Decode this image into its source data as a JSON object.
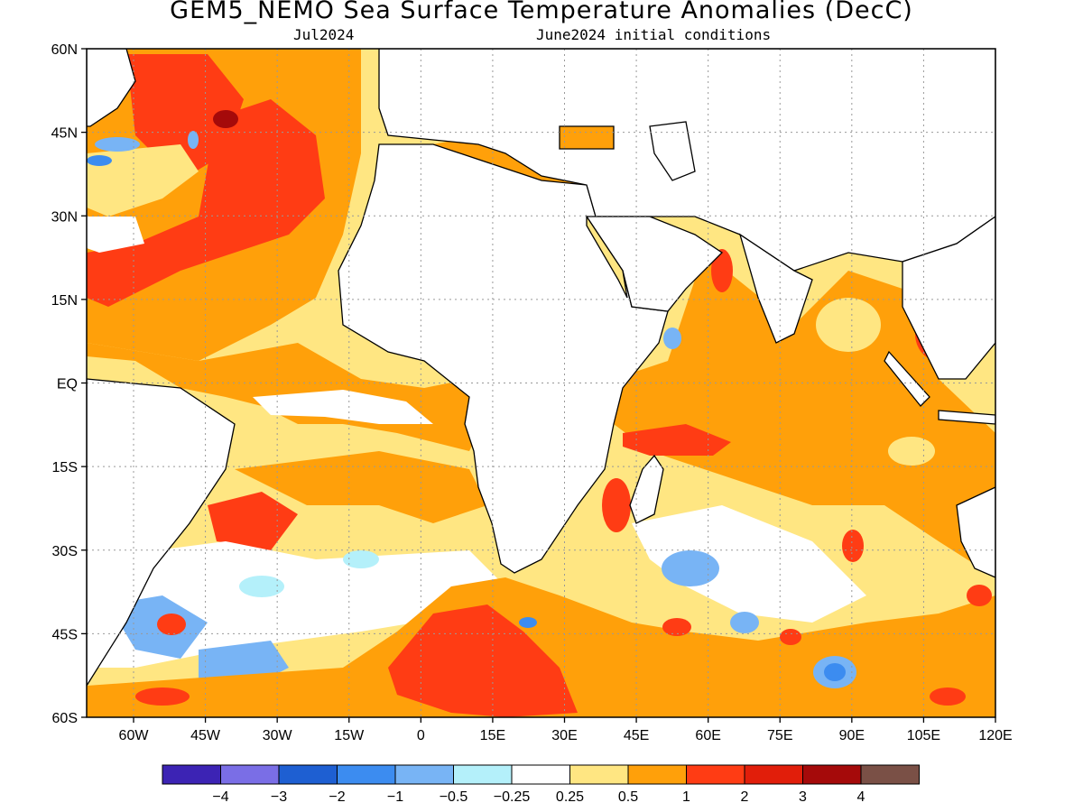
{
  "title": "GEM5_NEMO Sea Surface Temperature Anomalies (DecC)",
  "valid_month": "Jul2024",
  "init_conditions": "June2024 initial conditions",
  "map": {
    "lat_labels": [
      "60N",
      "45N",
      "30N",
      "15N",
      "EQ",
      "15S",
      "30S",
      "45S",
      "60S"
    ],
    "lon_labels": [
      "60W",
      "45W",
      "30W",
      "15W",
      "0",
      "15E",
      "30E",
      "45E",
      "60E",
      "75E",
      "90E",
      "105E",
      "120E"
    ],
    "colors": {
      "land": "#ffffff",
      "coast": "#000000",
      "grid": "#999999"
    }
  },
  "colorbar": {
    "colors": [
      "#3c23b4",
      "#7a6ee6",
      "#1e5fd2",
      "#3c8cf0",
      "#78b4f5",
      "#b4f0fa",
      "#ffffff",
      "#ffe682",
      "#ffa00a",
      "#ff3c14",
      "#e11e0a",
      "#a50a0a",
      "#7a5046"
    ],
    "labels": [
      "−4",
      "−3",
      "−2",
      "−1",
      "−0.5",
      "−0.25",
      "0.25",
      "0.5",
      "1",
      "2",
      "3",
      "4"
    ]
  }
}
